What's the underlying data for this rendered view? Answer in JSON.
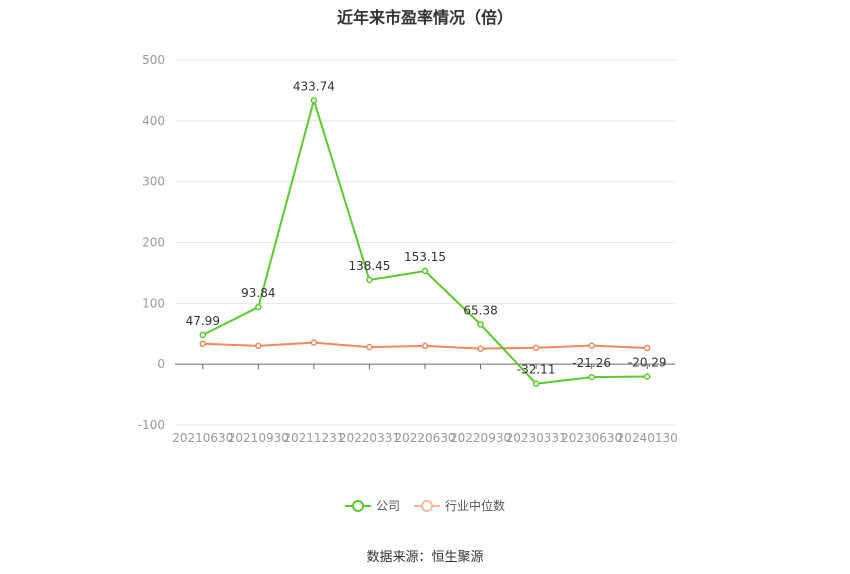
{
  "chart_data": {
    "type": "line",
    "title": "近年来市盈率情况（倍）",
    "categories": [
      "20210630",
      "20210930",
      "20211231",
      "20220331",
      "20220630",
      "20220930",
      "20230331",
      "20230630",
      "20240130"
    ],
    "series": [
      {
        "name": "公司",
        "color": "#5cc92f",
        "values": [
          47.99,
          93.84,
          433.74,
          138.45,
          153.15,
          65.38,
          -32.11,
          -21.26,
          -20.29
        ],
        "labels": [
          "47.99",
          "93.84",
          "433.74",
          "138.45",
          "153.15",
          "65.38",
          "-32.11",
          "-21.26",
          "-20.29"
        ]
      },
      {
        "name": "行业中位数",
        "color": "#ee8a5d",
        "values": [
          33.5,
          30.0,
          35.5,
          28.0,
          30.0,
          25.5,
          27.0,
          30.5,
          26.5
        ]
      }
    ],
    "ylim": [
      -100,
      500
    ],
    "yticks": [
      "500",
      "400",
      "300",
      "200",
      "100",
      "0",
      "-100"
    ],
    "grid": true,
    "legend": "bottom-center",
    "source": "数据来源：恒生聚源"
  }
}
